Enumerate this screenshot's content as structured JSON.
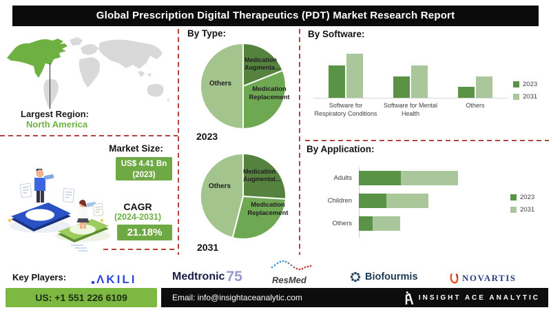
{
  "title": "Global Prescription Digital Therapeutics (PDT) Market Research Report",
  "region": {
    "label": "Largest Region:",
    "value": "North America"
  },
  "market": {
    "size_label": "Market Size:",
    "size_value": "US$ 4.41 Bn",
    "size_year": "(2023)",
    "cagr_label": "CAGR",
    "cagr_period": "(2024-2031)",
    "cagr_value": "21.18%"
  },
  "chart_data": [
    {
      "id": "by_type_2023",
      "type": "pie",
      "title": "By Type:",
      "year_label": "2023",
      "slices": [
        {
          "label": "Medication Augmenta...",
          "value": 19,
          "color": "#55823f"
        },
        {
          "label": "Medication Replacement",
          "value": 31,
          "color": "#6fa852"
        },
        {
          "label": "Others",
          "value": 50,
          "color": "#a4c48e"
        }
      ],
      "note": "percent values estimated from slice angles; no data labels shown"
    },
    {
      "id": "by_type_2031",
      "type": "pie",
      "year_label": "2031",
      "slices": [
        {
          "label": "Medication Augmentat...",
          "value": 26,
          "color": "#55823f"
        },
        {
          "label": "Medication Replacement",
          "value": 28,
          "color": "#6fa852"
        },
        {
          "label": "Others",
          "value": 46,
          "color": "#a4c48e"
        }
      ],
      "note": "percent values estimated from slice angles; no data labels shown"
    },
    {
      "id": "by_software",
      "type": "bar",
      "title": "By Software:",
      "categories": [
        "Software for Respiratory Conditions",
        "Software for Mental Health",
        "Others"
      ],
      "series": [
        {
          "name": "2023",
          "color": "#5a9246",
          "values": [
            73,
            48,
            25
          ]
        },
        {
          "name": "2031",
          "color": "#a9c79a",
          "values": [
            100,
            73,
            48
          ]
        }
      ],
      "legend_position": "right",
      "note": "no value axis shown; values are relative heights (max = 100)"
    },
    {
      "id": "by_application",
      "type": "bar",
      "orientation": "horizontal",
      "stacked": true,
      "title": "By Application:",
      "categories": [
        "Adults",
        "Children",
        "Others"
      ],
      "series": [
        {
          "name": "2023",
          "color": "#5a9246",
          "values": [
            42,
            28,
            14
          ]
        },
        {
          "name": "2031",
          "color": "#a9c79a",
          "values": [
            58,
            42,
            28
          ]
        }
      ],
      "legend_position": "right",
      "note": "no value axis shown; values are relative lengths (Adults total = 100)"
    }
  ],
  "key_players": {
    "label": "Key Players:",
    "players": [
      "Akili",
      "Medtronic",
      "ResMed",
      "Biofourmis",
      "Novartis"
    ],
    "logos": {
      "akili_text": "ΛKILI",
      "medtronic_text": "Medtronic",
      "medtronic_suffix": "75",
      "resmed_text": "ResMed",
      "biofourmis_text": "Biofourmis",
      "novartis_text": "NOVARTIS"
    }
  },
  "footer": {
    "phone": "US: +1 551 226 6109",
    "email": "Email: info@insightaceanalytic.com",
    "brand": "INSIGHT ACE ANALYTIC"
  },
  "colors": {
    "banner_bg": "#0b0b0b",
    "accent_green": "#6fb043",
    "value_box_green": "#6fa945",
    "pie_dark": "#55823f",
    "pie_mid": "#6fa852",
    "pie_light": "#a4c48e",
    "bar_2023": "#5a9246",
    "bar_2031": "#a9c79a",
    "dashed_red": "#b5433b",
    "footer_green": "#7db843",
    "map_gray": "#d9d9d9"
  }
}
